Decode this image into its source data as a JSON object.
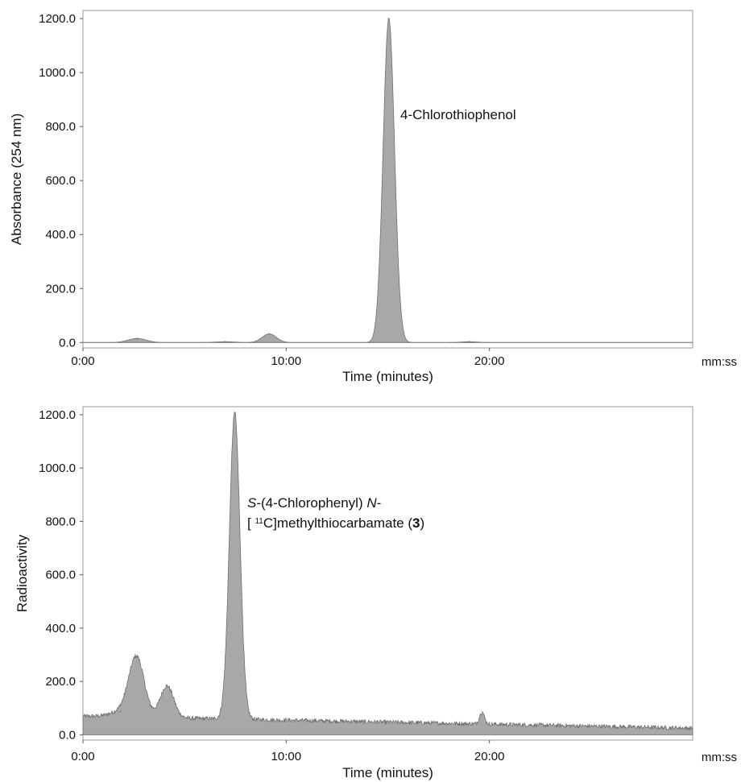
{
  "chart_data": [
    {
      "type": "area",
      "xlabel": "Time (minutes)",
      "ylabel": "Absorbance (254 nm)",
      "x_unit": "mm:ss",
      "x_ticks": [
        "0:00",
        "10:00",
        "20:00"
      ],
      "y_ticks": [
        "0.0",
        "200.0",
        "400.0",
        "600.0",
        "800.0",
        "1000.0",
        "1200.0"
      ],
      "xlim": [
        "0:00",
        "30:00"
      ],
      "ylim": [
        -20,
        1230
      ],
      "grid": false,
      "baseline": 0,
      "noise": 0,
      "peaks": [
        {
          "time": "2:40",
          "height": 15,
          "width_min": 0.45
        },
        {
          "time": "7:00",
          "height": 3,
          "width_min": 0.5
        },
        {
          "time": "9:10",
          "height": 32,
          "width_min": 0.35
        },
        {
          "time": "15:03",
          "height": 1200,
          "width_min": 0.28
        },
        {
          "time": "19:00",
          "height": 3,
          "width_min": 0.4
        }
      ],
      "annotations": [
        {
          "parts": [
            {
              "text": "4-Chlorothiophenol"
            }
          ],
          "near_peak": "15:03"
        }
      ]
    },
    {
      "type": "area",
      "xlabel": "Time (minutes)",
      "ylabel": "Radioactivity",
      "x_unit": "mm:ss",
      "x_ticks": [
        "0:00",
        "10:00",
        "20:00"
      ],
      "y_ticks": [
        "0.0",
        "200.0",
        "400.0",
        "600.0",
        "800.0",
        "1000.0",
        "1200.0"
      ],
      "xlim": [
        "0:00",
        "30:00"
      ],
      "ylim": [
        -20,
        1230
      ],
      "grid": false,
      "baseline": 70,
      "baseline_end": 25,
      "noise": 8,
      "peaks": [
        {
          "time": "1:50",
          "height": 20,
          "width_min": 0.5
        },
        {
          "time": "2:38",
          "height": 225,
          "width_min": 0.38
        },
        {
          "time": "4:08",
          "height": 120,
          "width_min": 0.33
        },
        {
          "time": "7:28",
          "height": 1150,
          "width_min": 0.26
        },
        {
          "time": "19:38",
          "height": 45,
          "width_min": 0.12
        }
      ],
      "annotations": [
        {
          "parts": [
            {
              "text": "S",
              "style": "ital"
            },
            {
              "text": "-(4-Chlorophenyl) "
            },
            {
              "text": "N",
              "style": "ital"
            },
            {
              "text": "-"
            }
          ],
          "near_peak": "7:28"
        },
        {
          "parts": [
            {
              "text": "[ "
            },
            {
              "text": "11",
              "style": "sup"
            },
            {
              "text": "C]methylthiocarbamate ("
            },
            {
              "text": "3",
              "style": "bold"
            },
            {
              "text": ")"
            }
          ],
          "near_peak": "7:28"
        }
      ]
    }
  ]
}
